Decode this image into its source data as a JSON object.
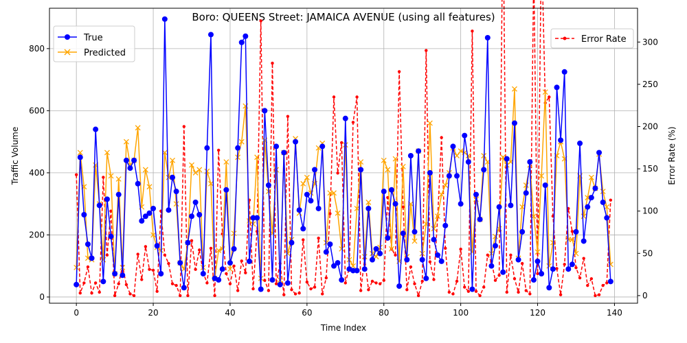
{
  "chart_data": {
    "type": "line",
    "title": "Boro: QUEENS Street: JAMAICA AVENUE (using all features)",
    "xlabel": "Time Index",
    "ylabel": "Traffic Volume",
    "y2label": "Error Rate (%)",
    "xlim": [
      -7,
      146
    ],
    "ylim": [
      -20,
      930
    ],
    "y2lim": [
      -9,
      340
    ],
    "xticks": [
      "0",
      "20",
      "40",
      "60",
      "80",
      "100",
      "120",
      "140"
    ],
    "xtick_values": [
      0,
      20,
      40,
      60,
      80,
      100,
      120,
      140
    ],
    "yticks": [
      "0",
      "200",
      "400",
      "600",
      "800"
    ],
    "ytick_values": [
      0,
      200,
      400,
      600,
      800
    ],
    "y2ticks": [
      "0",
      "50",
      "100",
      "150",
      "200",
      "250",
      "300"
    ],
    "y2tick_values": [
      0,
      50,
      100,
      150,
      200,
      250,
      300
    ],
    "grid": true,
    "legend_left": [
      "True",
      "Predicted"
    ],
    "legend_right": [
      "Error Rate"
    ],
    "colors": {
      "true": "#0000ff",
      "predicted": "#ffa500",
      "error": "#ff0000",
      "grid": "#b0b0b0"
    },
    "series": [
      {
        "name": "True",
        "values": [
          40,
          450,
          265,
          170,
          125,
          540,
          295,
          50,
          315,
          195,
          75,
          330,
          70,
          440,
          415,
          440,
          365,
          245,
          260,
          270,
          285,
          165,
          75,
          895,
          280,
          385,
          340,
          110,
          30,
          175,
          260,
          305,
          265,
          75,
          480,
          845,
          60,
          55,
          90,
          345,
          110,
          155,
          480,
          820,
          840,
          115,
          255,
          255,
          25,
          600,
          360,
          55,
          485,
          40,
          465,
          45,
          175,
          500,
          280,
          220,
          330,
          310,
          410,
          285,
          485,
          145,
          170,
          100,
          110,
          55,
          575,
          90,
          85,
          85,
          410,
          90,
          285,
          120,
          155,
          140,
          340,
          190,
          345,
          300,
          35,
          205,
          120,
          455,
          210,
          470,
          120,
          60,
          400,
          185,
          135,
          115,
          230,
          390,
          485,
          390,
          300,
          520,
          435,
          25,
          330,
          250,
          410,
          835,
          100,
          165,
          290,
          80,
          445,
          295,
          560,
          120,
          210,
          335,
          435,
          55,
          115,
          75,
          360,
          30,
          90,
          675,
          505,
          725,
          90,
          105,
          210,
          495,
          180,
          290,
          320,
          350,
          465,
          305,
          255,
          50
        ]
      },
      {
        "name": "Predicted",
        "values": [
          95,
          465,
          355,
          125,
          120,
          425,
          300,
          120,
          465,
          390,
          75,
          380,
          95,
          500,
          425,
          440,
          545,
          290,
          410,
          355,
          200,
          160,
          150,
          465,
          385,
          440,
          300,
          110,
          90,
          175,
          425,
          400,
          410,
          95,
          405,
          365,
          60,
          150,
          155,
          435,
          90,
          205,
          450,
          500,
          615,
          245,
          235,
          450,
          60,
          505,
          340,
          205,
          410,
          55,
          465,
          140,
          185,
          510,
          270,
          365,
          385,
          335,
          365,
          480,
          495,
          175,
          335,
          335,
          270,
          155,
          490,
          120,
          100,
          285,
          435,
          130,
          305,
          140,
          130,
          160,
          440,
          410,
          155,
          445,
          115,
          420,
          130,
          300,
          180,
          470,
          140,
          235,
          560,
          220,
          260,
          330,
          360,
          400,
          480,
          455,
          470,
          465,
          455,
          145,
          315,
          250,
          455,
          435,
          140,
          195,
          220,
          450,
          425,
          435,
          670,
          125,
          290,
          360,
          425,
          260,
          145,
          390,
          660,
          100,
          175,
          455,
          500,
          445,
          185,
          185,
          140,
          390,
          260,
          320,
          385,
          350,
          460,
          340,
          290,
          105
        ]
      },
      {
        "name": "Error Rate",
        "values": [
          143,
          3,
          15,
          34,
          3,
          15,
          4,
          140,
          48,
          100,
          0,
          14,
          35,
          13,
          2,
          0,
          49,
          19,
          58,
          31,
          30,
          5,
          100,
          48,
          38,
          14,
          12,
          0,
          200,
          0,
          65,
          31,
          54,
          27,
          15,
          56,
          0,
          172,
          73,
          26,
          14,
          35,
          6,
          41,
          27,
          113,
          8,
          76,
          325,
          18,
          6,
          275,
          14,
          38,
          1,
          212,
          7,
          2,
          3,
          66,
          16,
          8,
          10,
          68,
          2,
          21,
          97,
          235,
          145,
          181,
          15,
          33,
          205,
          235,
          6,
          44,
          7,
          17,
          15,
          14,
          18,
          116,
          55,
          48,
          265,
          105,
          7,
          34,
          14,
          0,
          17,
          290,
          40,
          19,
          93,
          187,
          56,
          4,
          2,
          17,
          55,
          10,
          5,
          313,
          5,
          0,
          10,
          48,
          40,
          18,
          24,
          462,
          4,
          48,
          20,
          4,
          38,
          6,
          2,
          390,
          26,
          421,
          228,
          235,
          94,
          32,
          1,
          37,
          103,
          76,
          33,
          21,
          44,
          12,
          20,
          0,
          1,
          12,
          15,
          113
        ]
      }
    ]
  }
}
